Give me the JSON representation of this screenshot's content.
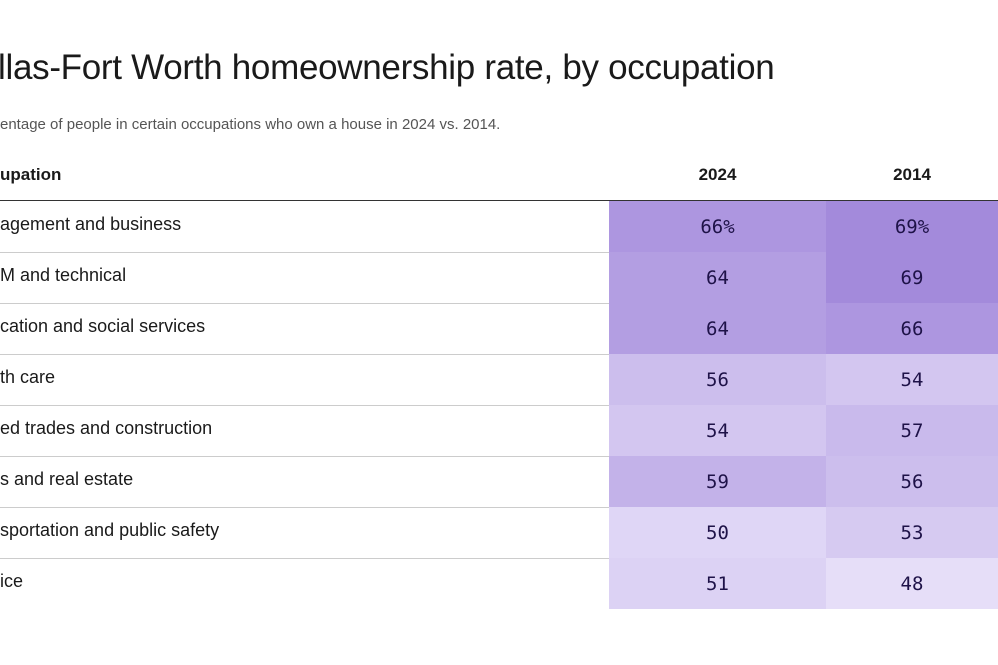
{
  "header": {
    "title": "llas-Fort Worth homeownership rate, by occupation",
    "subtitle": "entage of people in certain occupations who own a house in 2024 vs. 2014."
  },
  "table": {
    "columns": [
      "upation",
      "2024",
      "2014"
    ],
    "rows": [
      [
        "agement and business",
        "66%",
        "69%"
      ],
      [
        "M and technical",
        "64",
        "69"
      ],
      [
        "cation and social services",
        "64",
        "66"
      ],
      [
        "th care",
        "56",
        "54"
      ],
      [
        "ed trades and construction",
        "54",
        "57"
      ],
      [
        "s and real estate",
        "59",
        "56"
      ],
      [
        "sportation and public safety",
        "50",
        "53"
      ],
      [
        "ice",
        "51",
        "48"
      ]
    ]
  }
}
